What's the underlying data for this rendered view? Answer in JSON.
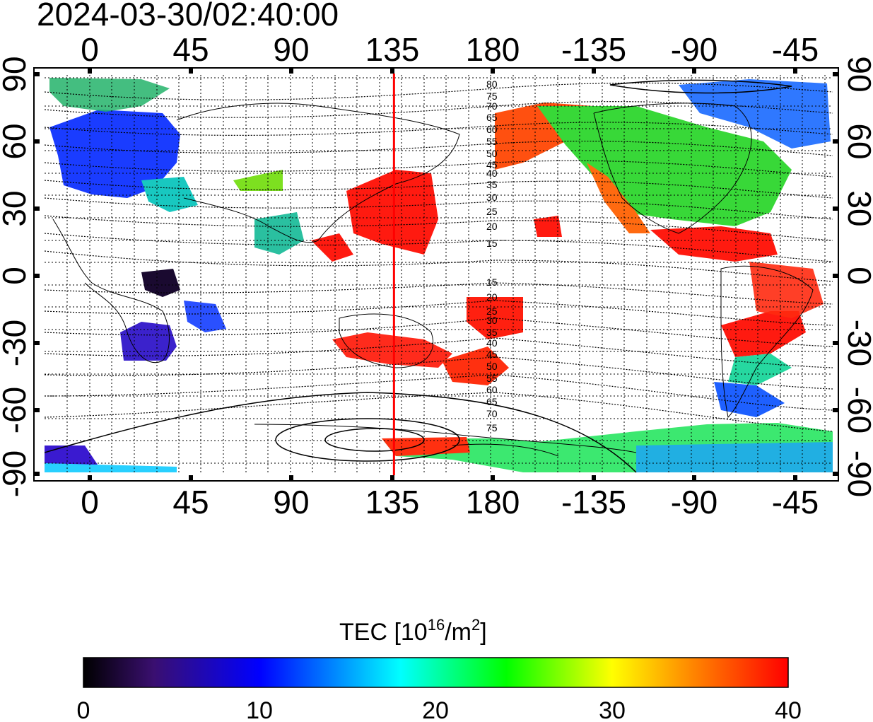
{
  "title": "2024-03-30/02:40:00",
  "map": {
    "lon_ticks": [
      "0",
      "45",
      "90",
      "135",
      "180",
      "-135",
      "-90",
      "-45"
    ],
    "lat_ticks": [
      "90",
      "60",
      "30",
      "0",
      "-30",
      "-60",
      "-90"
    ],
    "meridian_marker_lon": 135.9,
    "marker_color": "#ff0000",
    "contour_labels_north": [
      "80",
      "75",
      "70",
      "65",
      "60",
      "55",
      "50",
      "45",
      "40",
      "35",
      "30",
      "25",
      "20",
      "15"
    ],
    "contour_labels_south": [
      "15",
      "20",
      "25",
      "30",
      "35",
      "40",
      "45",
      "50",
      "55",
      "60",
      "65",
      "70",
      "75"
    ]
  },
  "colorbar": {
    "label": "TEC  [10",
    "label_sup": "16",
    "label_mid": "/m",
    "label_sup2": "2",
    "label_end": "]",
    "ticks": [
      "0",
      "10",
      "20",
      "30",
      "40"
    ],
    "stops": [
      "#000000",
      "#3a0f70",
      "#0000ff",
      "#00ffff",
      "#00ff00",
      "#ffff00",
      "#ff8000",
      "#ff0000"
    ]
  }
}
